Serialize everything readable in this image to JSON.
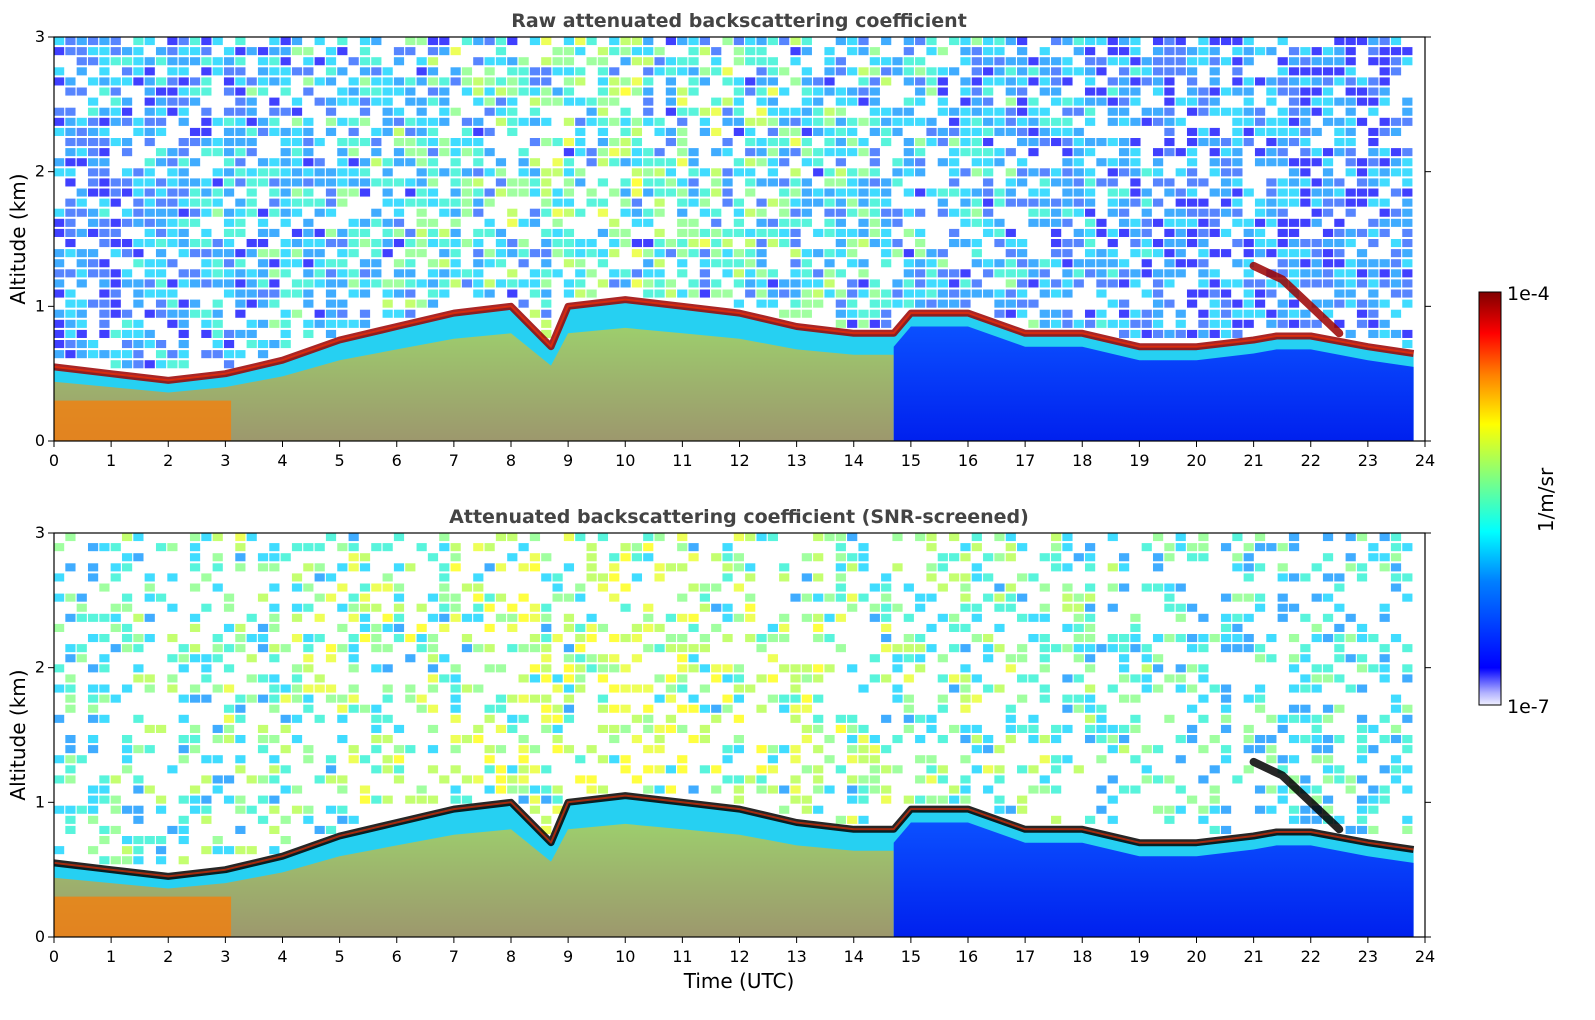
{
  "chart_data": [
    {
      "type": "heatmap",
      "title": "Raw attenuated backscattering coefficient",
      "xlabel": "",
      "ylabel": "Altitude (km)",
      "xlim": [
        0,
        24
      ],
      "ylim": [
        0,
        3
      ],
      "x_ticks": [
        "0",
        "1",
        "2",
        "3",
        "4",
        "5",
        "6",
        "7",
        "8",
        "9",
        "10",
        "11",
        "12",
        "13",
        "14",
        "15",
        "16",
        "17",
        "18",
        "19",
        "20",
        "21",
        "22",
        "23",
        "24"
      ],
      "y_ticks": [
        "0",
        "1",
        "2",
        "3"
      ],
      "data_end_hour": 23.8,
      "layer_top_km": [
        [
          0,
          0.55
        ],
        [
          1,
          0.5
        ],
        [
          2,
          0.45
        ],
        [
          3,
          0.5
        ],
        [
          4,
          0.6
        ],
        [
          5,
          0.75
        ],
        [
          6,
          0.85
        ],
        [
          7,
          0.95
        ],
        [
          8,
          1.0
        ],
        [
          8.7,
          0.7
        ],
        [
          9,
          1.0
        ],
        [
          10,
          1.05
        ],
        [
          11,
          1.0
        ],
        [
          12,
          0.95
        ],
        [
          13,
          0.85
        ],
        [
          14,
          0.8
        ],
        [
          14.7,
          0.8
        ],
        [
          15,
          0.95
        ],
        [
          16,
          0.95
        ],
        [
          17,
          0.8
        ],
        [
          18,
          0.8
        ],
        [
          19,
          0.7
        ],
        [
          20,
          0.7
        ],
        [
          21,
          0.75
        ],
        [
          21.4,
          0.78
        ],
        [
          22,
          0.78
        ],
        [
          23,
          0.7
        ],
        [
          23.8,
          0.65
        ]
      ],
      "elevated_layer_km": [
        [
          21,
          1.3
        ],
        [
          21.5,
          1.2
        ],
        [
          22,
          1.0
        ],
        [
          22.5,
          0.8
        ]
      ]
    },
    {
      "type": "heatmap",
      "title": "Attenuated backscattering coefficient (SNR-screened)",
      "xlabel": "Time (UTC)",
      "ylabel": "Altitude (km)",
      "xlim": [
        0,
        24
      ],
      "ylim": [
        0,
        3
      ],
      "x_ticks": [
        "0",
        "1",
        "2",
        "3",
        "4",
        "5",
        "6",
        "7",
        "8",
        "9",
        "10",
        "11",
        "12",
        "13",
        "14",
        "15",
        "16",
        "17",
        "18",
        "19",
        "20",
        "21",
        "22",
        "23",
        "24"
      ],
      "y_ticks": [
        "0",
        "1",
        "2",
        "3"
      ],
      "data_end_hour": 23.8,
      "layer_top_km": [
        [
          0,
          0.55
        ],
        [
          1,
          0.5
        ],
        [
          2,
          0.45
        ],
        [
          3,
          0.5
        ],
        [
          4,
          0.6
        ],
        [
          5,
          0.75
        ],
        [
          6,
          0.85
        ],
        [
          7,
          0.95
        ],
        [
          8,
          1.0
        ],
        [
          8.7,
          0.7
        ],
        [
          9,
          1.0
        ],
        [
          10,
          1.05
        ],
        [
          11,
          1.0
        ],
        [
          12,
          0.95
        ],
        [
          13,
          0.85
        ],
        [
          14,
          0.8
        ],
        [
          14.7,
          0.8
        ],
        [
          15,
          0.95
        ],
        [
          16,
          0.95
        ],
        [
          17,
          0.8
        ],
        [
          18,
          0.8
        ],
        [
          19,
          0.7
        ],
        [
          20,
          0.7
        ],
        [
          21,
          0.75
        ],
        [
          21.4,
          0.78
        ],
        [
          22,
          0.78
        ],
        [
          23,
          0.7
        ],
        [
          23.8,
          0.65
        ]
      ],
      "elevated_layer_km": [
        [
          21,
          1.3
        ],
        [
          21.5,
          1.2
        ],
        [
          22,
          1.0
        ],
        [
          22.5,
          0.8
        ]
      ]
    }
  ],
  "colorbar": {
    "label": "1/m/sr",
    "max_label": "1e-4",
    "min_label": "1e-7",
    "scale": "log",
    "colormap": "jet",
    "colors": [
      "#f0f0ff",
      "#b0b0ff",
      "#0000ff",
      "#0080ff",
      "#00ffff",
      "#80ff80",
      "#ffff00",
      "#ff8000",
      "#ff0000",
      "#800000"
    ]
  }
}
